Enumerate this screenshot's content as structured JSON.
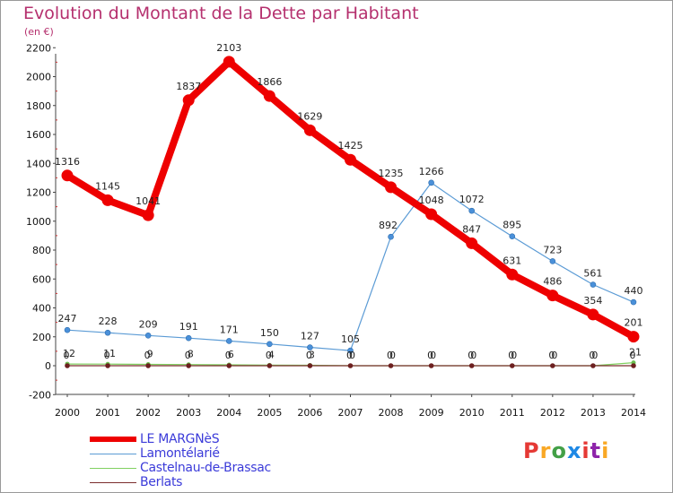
{
  "header": {
    "title": "Evolution du Montant de la Dette par Habitant",
    "unit": "(en €)"
  },
  "brand": {
    "logo_text": "Proxiti",
    "logo_colors": [
      "#e53935",
      "#f9a825",
      "#43a047",
      "#1e88e5",
      "#e53935",
      "#8e24aa",
      "#f9a825"
    ]
  },
  "chart_data": {
    "type": "line",
    "title": "Evolution du Montant de la Dette par Habitant",
    "subtitle": "(en €)",
    "x": [
      "2000",
      "2001",
      "2002",
      "2003",
      "2004",
      "2005",
      "2006",
      "2007",
      "2008",
      "2009",
      "2010",
      "2011",
      "2012",
      "2013",
      "2014"
    ],
    "ylim": [
      -200,
      2200
    ],
    "yticks": [
      -200,
      0,
      200,
      400,
      600,
      800,
      1000,
      1200,
      1400,
      1600,
      1800,
      2000,
      2200
    ],
    "grid": false,
    "legend_position": "bottom-left",
    "series": [
      {
        "name": "LE MARGNèS",
        "color": "#ee0000",
        "values": [
          1316,
          1145,
          1041,
          1837,
          2103,
          1866,
          1629,
          1425,
          1235,
          1048,
          847,
          631,
          486,
          354,
          201
        ]
      },
      {
        "name": "Lamontélarié",
        "color": "#5b9bd5",
        "values": [
          247,
          228,
          209,
          191,
          171,
          150,
          127,
          105,
          892,
          1266,
          1072,
          895,
          723,
          561,
          440
        ]
      },
      {
        "name": "Castelnau-de-Brassac",
        "color": "#80d060",
        "values": [
          12,
          11,
          9,
          8,
          6,
          4,
          3,
          0,
          0,
          0,
          0,
          0,
          0,
          0,
          21
        ]
      },
      {
        "name": "Berlats",
        "color": "#7b2e2e",
        "values": [
          0,
          0,
          0,
          0,
          0,
          0,
          0,
          0,
          0,
          0,
          0,
          0,
          0,
          0,
          0
        ]
      }
    ]
  }
}
